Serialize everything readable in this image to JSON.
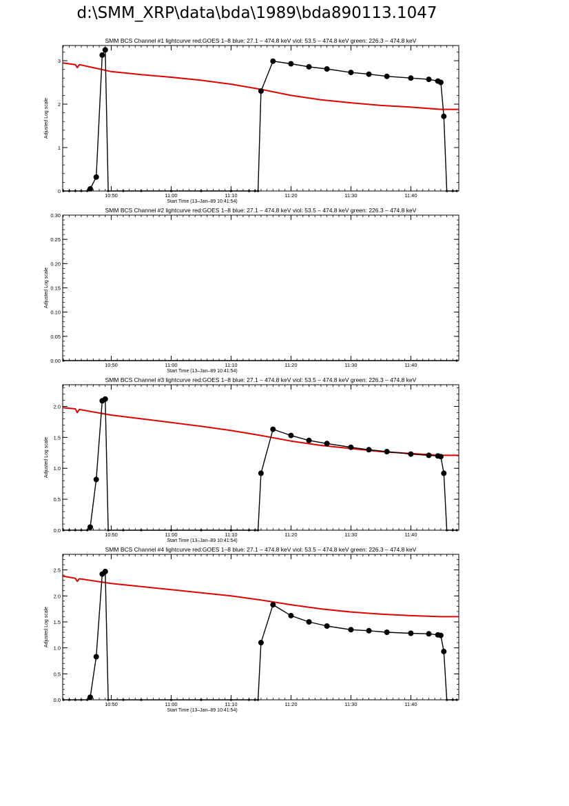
{
  "page": {
    "title": "d:\\SMM_XRP\\data\\bda\\1989\\bda890113.1047"
  },
  "colors": {
    "goes": "#e00000",
    "counts": "#000000",
    "axes": "#000000"
  },
  "chart_data": [
    {
      "type": "line",
      "title": "SMM BCS Channel #1 lightcurve  red:GOES 1–8  blue: 27.1 – 474.8 keV  viol: 53.5 – 474.8 keV  green: 226.3 – 474.8 keV",
      "xlabel": "Start Time (13–Jan–89 10:41:54)",
      "ylabel": "Adjusted Log scale",
      "xlim": [
        "10:41:54",
        "11:48:00"
      ],
      "ylim": [
        0,
        3.35
      ],
      "yticks": [
        0,
        1,
        2,
        3
      ],
      "ytick_labels": [
        "0",
        "1",
        "2",
        "3"
      ],
      "xticks": [
        "10:50",
        "11:00",
        "11:10",
        "11:20",
        "11:30",
        "11:40"
      ],
      "grid": false,
      "series": [
        {
          "name": "red:GOES 1–8",
          "color": "#e00000",
          "x": [
            "10:41:54",
            "10:44:00",
            "10:44:20",
            "10:44:40",
            "10:50:00",
            "10:55:00",
            "11:00:00",
            "11:05:00",
            "11:10:00",
            "11:15:00",
            "11:20:00",
            "11:25:00",
            "11:30:00",
            "11:35:00",
            "11:40:00",
            "11:45:00",
            "11:48:00"
          ],
          "values": [
            2.95,
            2.91,
            2.84,
            2.91,
            2.75,
            2.68,
            2.62,
            2.55,
            2.46,
            2.34,
            2.2,
            2.1,
            2.03,
            1.97,
            1.93,
            1.88,
            1.88
          ]
        },
        {
          "name": "BCS channel #1",
          "color": "#000000",
          "x": [
            "10:42:00",
            "10:43:00",
            "10:44:00",
            "10:45:00",
            "10:46:00",
            "10:46:30",
            "10:47:30",
            "10:48:30",
            "10:49:00",
            "10:49:30",
            "10:52:00",
            "10:55:00",
            "11:00:00",
            "11:05:00",
            "11:10:00",
            "11:13:00",
            "11:14:00",
            "11:14:30",
            "11:15:00",
            "11:17:00",
            "11:20:00",
            "11:23:00",
            "11:26:00",
            "11:30:00",
            "11:33:00",
            "11:36:00",
            "11:40:00",
            "11:43:00",
            "11:44:30",
            "11:45:00",
            "11:45:30",
            "11:46:00",
            "11:47:00",
            "11:47:40"
          ],
          "values": [
            0,
            0,
            0,
            0,
            0,
            0.05,
            0.32,
            3.13,
            3.25,
            0,
            0,
            0,
            0,
            0,
            0,
            0,
            0,
            0,
            2.3,
            2.99,
            2.93,
            2.86,
            2.81,
            2.73,
            2.69,
            2.64,
            2.6,
            2.57,
            2.53,
            2.5,
            1.72,
            0,
            0,
            0
          ]
        }
      ]
    },
    {
      "type": "line",
      "title": "SMM BCS Channel #2 lightcurve  red:GOES 1–8  blue: 27.1 – 474.8 keV  viol: 53.5 – 474.8 keV  green: 226.3 – 474.8 keV",
      "xlabel": "Start Time (13–Jan–89 10:41:54)",
      "ylabel": "Adjusted Log scale",
      "xlim": [
        "10:41:54",
        "11:48:00"
      ],
      "ylim": [
        0,
        0.3
      ],
      "yticks": [
        0,
        0.05,
        0.1,
        0.15,
        0.2,
        0.25,
        0.3
      ],
      "ytick_labels": [
        "0.00",
        "0.05",
        "0.10",
        "0.15",
        "0.20",
        "0.25",
        "0.30"
      ],
      "xticks": [
        "10:50",
        "11:00",
        "11:10",
        "11:20",
        "11:30",
        "11:40"
      ],
      "grid": false,
      "series": [
        {
          "name": "BCS channel #2",
          "color": "#000000",
          "x": [
            "10:42:00",
            "11:47:40"
          ],
          "values": [
            0,
            0
          ]
        }
      ]
    },
    {
      "type": "line",
      "title": "SMM BCS Channel #3 lightcurve  red:GOES 1–8  blue: 27.1 – 474.8 keV  viol: 53.5 – 474.8 keV  green: 226.3 – 474.8 keV",
      "xlabel": "Start Time (13–Jan–89 10:41:54)",
      "ylabel": "Adjusted Log scale",
      "xlim": [
        "10:41:54",
        "11:48:00"
      ],
      "ylim": [
        0,
        2.35
      ],
      "yticks": [
        0,
        0.5,
        1,
        1.5,
        2
      ],
      "ytick_labels": [
        "0.0",
        "0.5",
        "1.0",
        "1.5",
        "2.0"
      ],
      "xticks": [
        "10:50",
        "11:00",
        "11:10",
        "11:20",
        "11:30",
        "11:40"
      ],
      "grid": false,
      "series": [
        {
          "name": "red:GOES 1–8",
          "color": "#e00000",
          "x": [
            "10:41:54",
            "10:44:00",
            "10:44:20",
            "10:44:40",
            "10:50:00",
            "10:55:00",
            "11:00:00",
            "11:05:00",
            "11:10:00",
            "11:15:00",
            "11:20:00",
            "11:25:00",
            "11:30:00",
            "11:35:00",
            "11:40:00",
            "11:45:00",
            "11:48:00"
          ],
          "values": [
            1.98,
            1.96,
            1.9,
            1.95,
            1.86,
            1.8,
            1.74,
            1.68,
            1.61,
            1.53,
            1.44,
            1.37,
            1.32,
            1.27,
            1.24,
            1.21,
            1.21
          ]
        },
        {
          "name": "BCS channel #3",
          "color": "#000000",
          "x": [
            "10:42:00",
            "10:43:00",
            "10:44:00",
            "10:45:00",
            "10:46:00",
            "10:46:30",
            "10:47:30",
            "10:48:30",
            "10:49:00",
            "10:49:30",
            "10:52:00",
            "10:55:00",
            "11:00:00",
            "11:05:00",
            "11:10:00",
            "11:13:00",
            "11:14:00",
            "11:14:30",
            "11:15:00",
            "11:17:00",
            "11:20:00",
            "11:23:00",
            "11:26:00",
            "11:30:00",
            "11:33:00",
            "11:36:00",
            "11:40:00",
            "11:43:00",
            "11:44:30",
            "11:45:00",
            "11:45:30",
            "11:46:00",
            "11:47:00",
            "11:47:40"
          ],
          "values": [
            0,
            0,
            0,
            0,
            0,
            0.05,
            0.82,
            2.09,
            2.12,
            0,
            0,
            0,
            0,
            0,
            0,
            0,
            0,
            0,
            0.92,
            1.63,
            1.53,
            1.45,
            1.4,
            1.34,
            1.3,
            1.27,
            1.23,
            1.21,
            1.2,
            1.19,
            0.92,
            0,
            0,
            0
          ]
        }
      ]
    },
    {
      "type": "line",
      "title": "SMM BCS Channel #4 lightcurve  red:GOES 1–8  blue: 27.1 – 474.8 keV  viol: 53.5 – 474.8 keV  green: 226.3 – 474.8 keV",
      "xlabel": "Start Time (13–Jan–89 10:41:54)",
      "ylabel": "Adjusted Log scale",
      "xlim": [
        "10:41:54",
        "11:48:00"
      ],
      "ylim": [
        0,
        2.8
      ],
      "yticks": [
        0,
        0.5,
        1,
        1.5,
        2,
        2.5
      ],
      "ytick_labels": [
        "0.0",
        "0.5",
        "1.0",
        "1.5",
        "2.0",
        "2.5"
      ],
      "xticks": [
        "10:50",
        "11:00",
        "11:10",
        "11:20",
        "11:30",
        "11:40"
      ],
      "grid": false,
      "series": [
        {
          "name": "red:GOES 1–8",
          "color": "#e00000",
          "x": [
            "10:41:54",
            "10:44:00",
            "10:44:20",
            "10:44:40",
            "10:50:00",
            "10:55:00",
            "11:00:00",
            "11:05:00",
            "11:10:00",
            "11:15:00",
            "11:20:00",
            "11:25:00",
            "11:30:00",
            "11:35:00",
            "11:40:00",
            "11:45:00",
            "11:48:00"
          ],
          "values": [
            2.38,
            2.34,
            2.28,
            2.33,
            2.24,
            2.18,
            2.12,
            2.06,
            2.0,
            1.92,
            1.83,
            1.75,
            1.69,
            1.65,
            1.62,
            1.6,
            1.6
          ]
        },
        {
          "name": "BCS channel #4",
          "color": "#000000",
          "x": [
            "10:42:00",
            "10:43:00",
            "10:44:00",
            "10:45:00",
            "10:46:00",
            "10:46:30",
            "10:47:30",
            "10:48:30",
            "10:49:00",
            "10:49:30",
            "10:52:00",
            "10:55:00",
            "11:00:00",
            "11:05:00",
            "11:10:00",
            "11:13:00",
            "11:14:00",
            "11:14:30",
            "11:15:00",
            "11:17:00",
            "11:20:00",
            "11:23:00",
            "11:26:00",
            "11:30:00",
            "11:33:00",
            "11:36:00",
            "11:40:00",
            "11:43:00",
            "11:44:30",
            "11:45:00",
            "11:45:30",
            "11:46:00",
            "11:47:00",
            "11:47:40"
          ],
          "values": [
            0,
            0,
            0,
            0,
            0,
            0.05,
            0.83,
            2.42,
            2.47,
            0,
            0,
            0,
            0,
            0,
            0,
            0,
            0,
            0,
            1.1,
            1.83,
            1.62,
            1.5,
            1.42,
            1.35,
            1.33,
            1.3,
            1.28,
            1.27,
            1.25,
            1.24,
            0.93,
            0,
            0,
            0
          ]
        }
      ]
    }
  ]
}
